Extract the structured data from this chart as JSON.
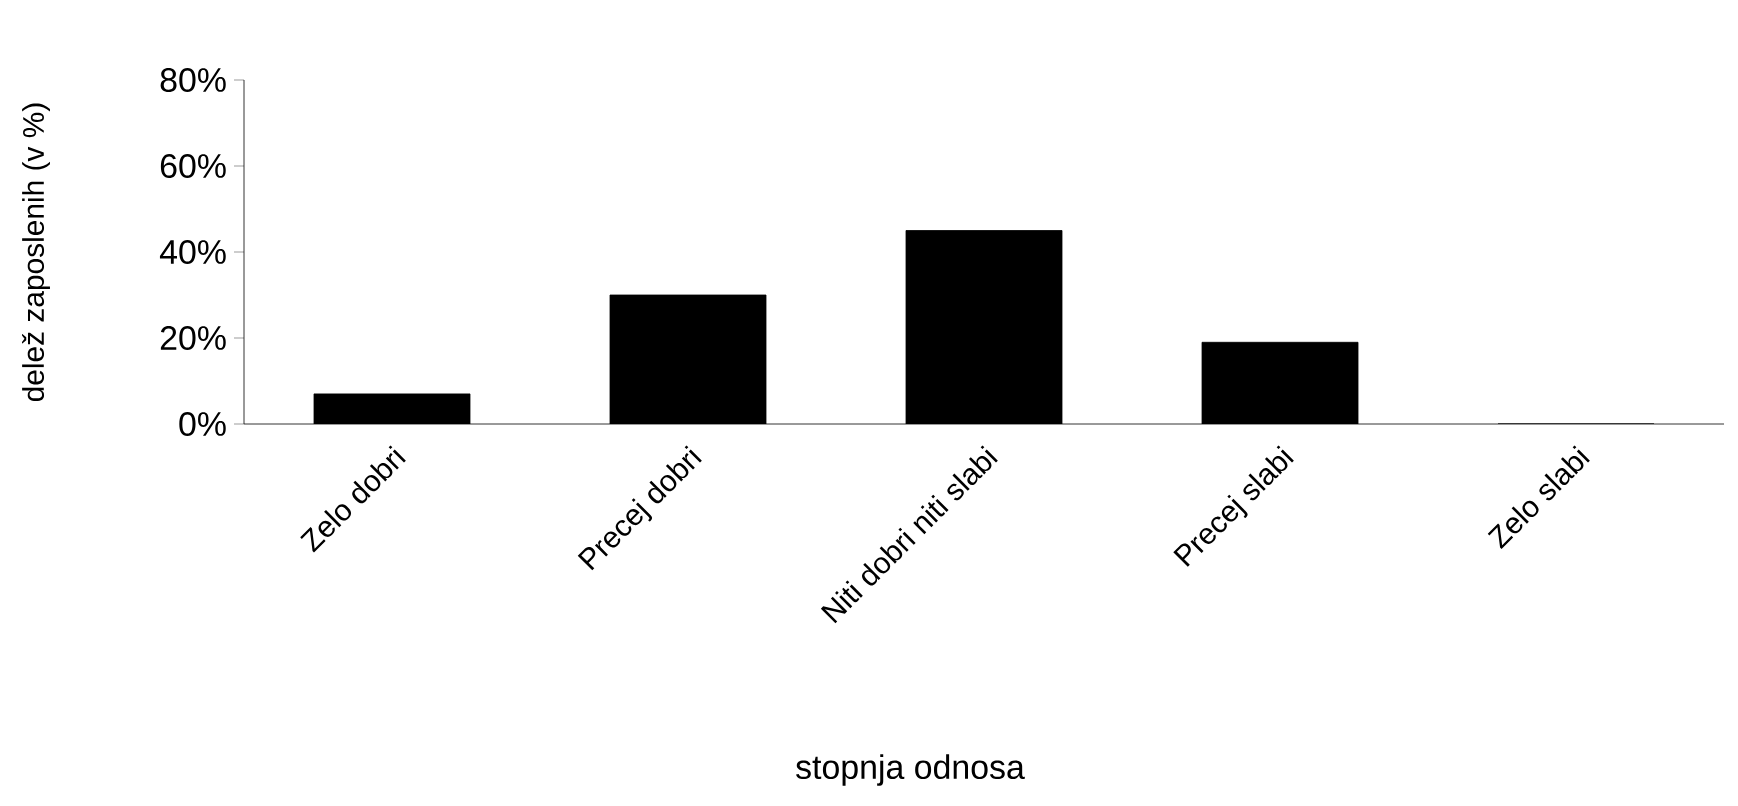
{
  "chart_data": {
    "type": "bar",
    "xlabel": "stopnja odnosa",
    "ylabel": "delež zaposlenih (v %)",
    "categories": [
      "Zelo dobri",
      "Precej dobri",
      "Niti dobri niti slabi",
      "Precej slabi",
      "Zelo slabi"
    ],
    "values": [
      7,
      30,
      45,
      19,
      0
    ],
    "color": "#000000",
    "ylim": [
      0,
      80
    ],
    "yticks": [
      {
        "value": 0,
        "label": "0%"
      },
      {
        "value": 20,
        "label": "20%"
      },
      {
        "value": 40,
        "label": "40%"
      },
      {
        "value": 60,
        "label": "60%"
      },
      {
        "value": 80,
        "label": "80%"
      }
    ],
    "grid": false
  }
}
